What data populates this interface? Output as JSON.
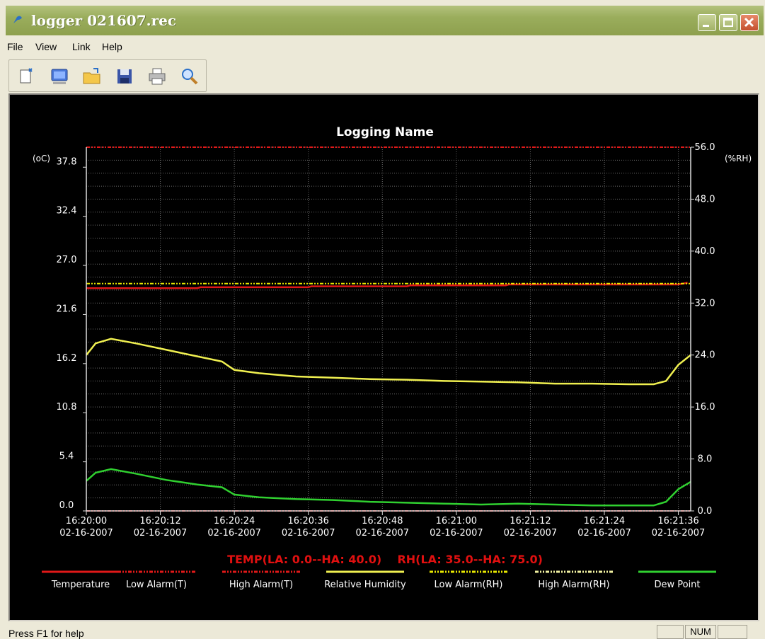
{
  "window": {
    "title": "logger 021607.rec"
  },
  "menu": [
    "File",
    "View",
    "Link",
    "Help"
  ],
  "toolbar": [
    {
      "icon": "new-file-icon"
    },
    {
      "icon": "monitor-icon"
    },
    {
      "icon": "open-folder-icon"
    },
    {
      "icon": "save-icon"
    },
    {
      "icon": "print-icon"
    },
    {
      "icon": "zoom-icon"
    }
  ],
  "status": {
    "help": "Press F1 for help",
    "num": "NUM"
  },
  "colors": {
    "temperature": "#e01818",
    "humidity": "#f0f050",
    "humidity_alarm": "#e8e800",
    "dew_point": "#30d030",
    "alarm_text": "#e01010"
  },
  "chart_data": {
    "type": "line",
    "title": "Logging Name",
    "y_left": {
      "unit": "(oC)",
      "ticks": [
        "37.8",
        "32.4",
        "27.0",
        "21.6",
        "16.2",
        "10.8",
        "5.4",
        "0.0"
      ],
      "range": [
        0,
        40.0
      ]
    },
    "y_right": {
      "unit": "(%RH)",
      "ticks": [
        "56.0",
        "48.0",
        "40.0",
        "32.0",
        "24.0",
        "16.0",
        "8.0",
        "0.0"
      ],
      "range": [
        0,
        56.0
      ]
    },
    "x_ticks": [
      {
        "time": "16:20:00",
        "date": "02-16-2007"
      },
      {
        "time": "16:20:12",
        "date": "02-16-2007"
      },
      {
        "time": "16:20:24",
        "date": "02-16-2007"
      },
      {
        "time": "16:20:36",
        "date": "02-16-2007"
      },
      {
        "time": "16:20:48",
        "date": "02-16-2007"
      },
      {
        "time": "16:21:00",
        "date": "02-16-2007"
      },
      {
        "time": "16:21:12",
        "date": "02-16-2007"
      },
      {
        "time": "16:21:24",
        "date": "02-16-2007"
      },
      {
        "time": "16:21:36",
        "date": "02-16-2007"
      }
    ],
    "x_seconds": [
      0,
      12,
      24,
      36,
      48,
      60,
      72,
      84,
      96
    ],
    "alarm_text": "TEMP(LA: 0.0--HA: 40.0)    RH(LA: 35.0--HA: 75.0)",
    "series": [
      {
        "name": "Temperature",
        "axis": "left",
        "style": "solid",
        "color": "#e01818",
        "x": [
          0,
          18,
          18.5,
          36,
          36.5,
          52,
          52.5,
          68,
          68.5,
          96,
          97.5
        ],
        "y": [
          24.5,
          24.5,
          24.6,
          24.6,
          24.7,
          24.7,
          24.8,
          24.8,
          24.9,
          24.9,
          25.1
        ]
      },
      {
        "name": "Low Alarm(T)",
        "axis": "left",
        "style": "dashdot",
        "color": "#e01818",
        "x": [
          0,
          98
        ],
        "y": [
          0,
          0
        ]
      },
      {
        "name": "High Alarm(T)",
        "axis": "left",
        "style": "dashdot",
        "color": "#e01818",
        "x": [
          0,
          98
        ],
        "y": [
          40.0,
          40.0
        ]
      },
      {
        "name": "Relative Humidity",
        "axis": "right",
        "style": "solid",
        "color": "#f0f050",
        "x": [
          0,
          1.5,
          4,
          8,
          13,
          18,
          22,
          24,
          28,
          34,
          40,
          46,
          52,
          58,
          64,
          70,
          76,
          82,
          88,
          92,
          94,
          96,
          98
        ],
        "y": [
          24.0,
          25.8,
          26.5,
          25.8,
          24.8,
          23.8,
          23.0,
          21.7,
          21.2,
          20.7,
          20.5,
          20.3,
          20.2,
          20.0,
          19.9,
          19.8,
          19.6,
          19.6,
          19.5,
          19.5,
          20.0,
          22.5,
          24.0
        ]
      },
      {
        "name": "Low Alarm(RH)",
        "axis": "right",
        "style": "dashdot",
        "color": "#e8e800",
        "x": [
          0,
          98
        ],
        "y": [
          35.0,
          35.0
        ]
      },
      {
        "name": "High Alarm(RH)",
        "axis": "right",
        "style": "dashdot",
        "color": "#f0f0a0",
        "x": [],
        "y": []
      },
      {
        "name": "Dew Point",
        "axis": "left",
        "style": "solid",
        "color": "#30d030",
        "x": [
          0,
          1.5,
          4,
          8,
          13,
          18,
          22,
          24,
          28,
          34,
          40,
          46,
          52,
          58,
          64,
          70,
          76,
          82,
          88,
          92,
          94,
          96,
          98
        ],
        "y": [
          3.3,
          4.2,
          4.6,
          4.1,
          3.4,
          2.9,
          2.6,
          1.8,
          1.5,
          1.3,
          1.2,
          1.0,
          0.9,
          0.8,
          0.7,
          0.8,
          0.7,
          0.6,
          0.6,
          0.6,
          1.0,
          2.4,
          3.2
        ]
      }
    ]
  }
}
